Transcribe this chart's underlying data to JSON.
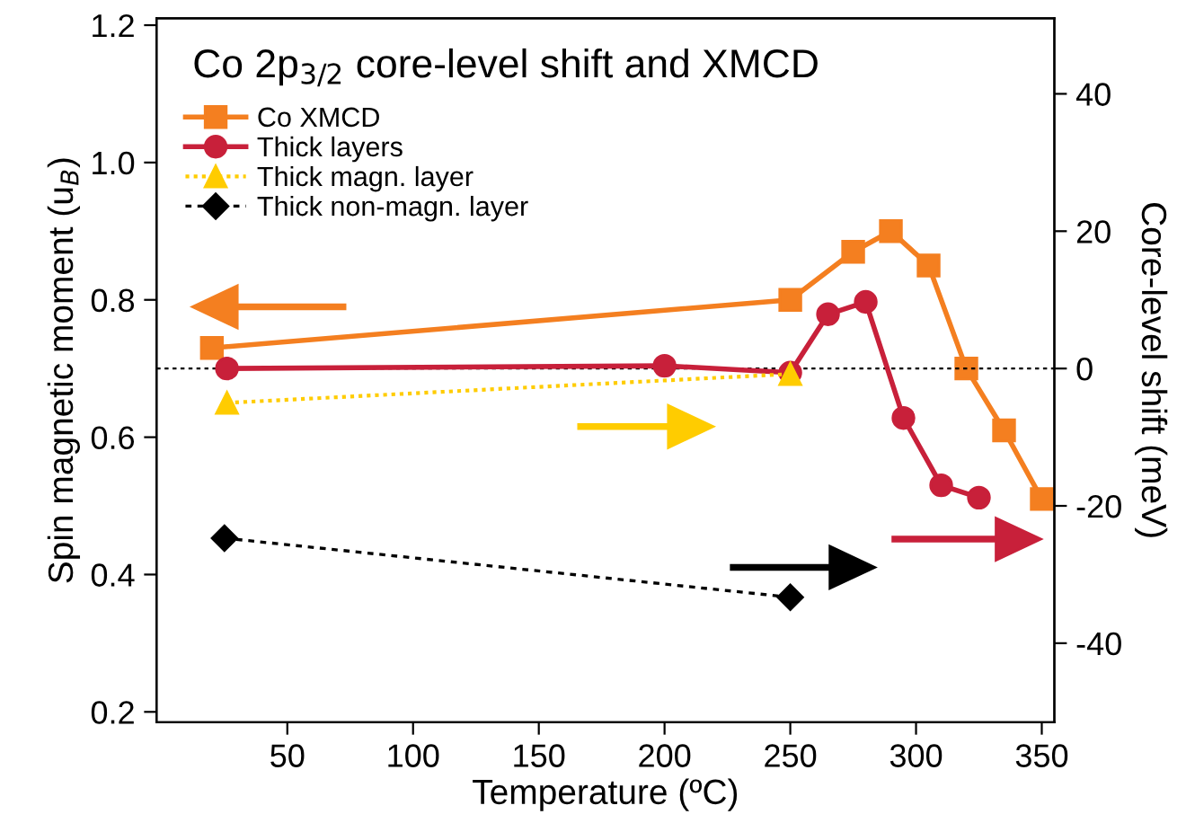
{
  "chart_data": {
    "type": "line",
    "title": "Co 2p$_{3/2}$ core-level shift and XMCD",
    "xlabel": "Temperature (ºC)",
    "ylabel": "Spin magnetic moment (u$_{B}$)",
    "y2label": "Core-level shift (meV)",
    "xlim": [
      -2,
      355
    ],
    "xticks": [
      50,
      100,
      150,
      200,
      250,
      300,
      350
    ],
    "ylim": [
      0.185,
      1.21
    ],
    "yticks": [
      0.2,
      0.4,
      0.6,
      0.8,
      {
        "value": 1,
        "label": "1.0"
      },
      1.2
    ],
    "y2lim": [
      -51.5,
      51
    ],
    "y2ticks": [
      -40,
      -20,
      0,
      20,
      40
    ],
    "grid": false,
    "legend": "top left",
    "ref_lines": [
      {
        "axis": "y2",
        "value": 0,
        "color": "#000000",
        "line_style": "dashed"
      }
    ],
    "series": [
      {
        "name": "Co XMCD",
        "color": "#f47f20",
        "marker": "square",
        "line_style": "solid",
        "x": [
          20,
          250,
          275,
          290,
          305,
          320,
          335,
          350
        ],
        "values": [
          0.73,
          0.8,
          0.87,
          0.9,
          0.85,
          0.7,
          0.61,
          0.51
        ]
      },
      {
        "name": "Thick layers",
        "color": "#c8203a",
        "marker": "circle",
        "line_style": "solid",
        "axis": "y2",
        "x": [
          26,
          200,
          250,
          265,
          280,
          295,
          310,
          325
        ],
        "values": [
          0,
          0.4,
          -0.6,
          7.9,
          9.7,
          -7.2,
          -17,
          -18.8
        ]
      },
      {
        "name": "Thick magn. layer",
        "color": "#ffcc00",
        "marker": "triangle",
        "line_style": "dotted",
        "axis": "y2",
        "x": [
          26,
          250
        ],
        "values": [
          -5,
          -0.8
        ]
      },
      {
        "name": "Thick non-magn. layer",
        "color": "#000000",
        "marker": "diamond",
        "line_style": "dashed",
        "axis": "y2",
        "x": [
          25,
          250
        ],
        "values": [
          -24.7,
          -33.3
        ]
      }
    ]
  }
}
